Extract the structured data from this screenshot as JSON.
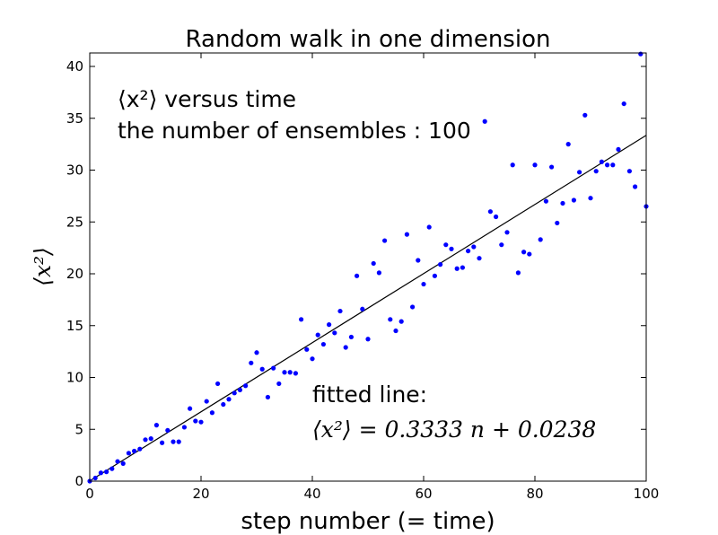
{
  "chart_data": {
    "type": "scatter",
    "title": "Random walk in one dimension",
    "xlabel": "step number (= time)",
    "ylabel": "⟨x²⟩",
    "xlim": [
      0,
      100
    ],
    "ylim": [
      0,
      41.3
    ],
    "xticks": [
      0,
      20,
      40,
      60,
      80,
      100
    ],
    "yticks": [
      0,
      5,
      10,
      15,
      20,
      25,
      30,
      35,
      40
    ],
    "grid": false,
    "annotations": {
      "line1": "⟨x²⟩ versus time",
      "line2": "the number of ensembles : 100",
      "fit_label": "fitted line:",
      "fit_equation": "⟨x²⟩ = 0.3333 n + 0.0238"
    },
    "fit": {
      "slope": 0.3333,
      "intercept": 0.0238
    },
    "series": [
      {
        "marker_color": "#0000ff",
        "x": [
          0,
          1,
          2,
          3,
          4,
          5,
          6,
          7,
          8,
          9,
          10,
          11,
          12,
          13,
          14,
          15,
          16,
          17,
          18,
          19,
          20,
          21,
          22,
          23,
          24,
          25,
          26,
          27,
          28,
          29,
          30,
          31,
          32,
          33,
          34,
          35,
          36,
          37,
          38,
          39,
          40,
          41,
          42,
          43,
          44,
          45,
          46,
          47,
          48,
          49,
          50,
          51,
          52,
          53,
          54,
          55,
          56,
          57,
          58,
          59,
          60,
          61,
          62,
          63,
          64,
          65,
          66,
          67,
          68,
          69,
          70,
          71,
          72,
          73,
          74,
          75,
          76,
          77,
          78,
          79,
          80,
          81,
          82,
          83,
          84,
          85,
          86,
          87,
          88,
          89,
          90,
          91,
          92,
          93,
          94,
          95,
          96,
          97,
          98,
          99,
          100
        ],
        "y": [
          0,
          0.3,
          0.8,
          0.9,
          1.2,
          1.9,
          1.7,
          2.7,
          2.9,
          3.1,
          4.0,
          4.1,
          5.4,
          3.7,
          4.9,
          3.8,
          3.8,
          5.2,
          7.0,
          5.8,
          5.7,
          7.7,
          6.6,
          9.4,
          7.4,
          7.9,
          8.5,
          8.8,
          9.2,
          11.4,
          12.4,
          10.8,
          8.1,
          10.9,
          9.4,
          10.5,
          10.5,
          10.4,
          15.6,
          12.7,
          11.8,
          14.1,
          13.2,
          15.1,
          14.3,
          16.4,
          12.9,
          13.9,
          19.8,
          16.6,
          13.7,
          21.0,
          20.1,
          23.2,
          15.6,
          14.5,
          15.4,
          23.8,
          16.8,
          21.3,
          19.0,
          24.5,
          19.8,
          20.9,
          22.8,
          22.4,
          20.5,
          20.6,
          22.2,
          22.6,
          21.5,
          34.7,
          26.0,
          25.5,
          22.8,
          24.0,
          30.5,
          20.1,
          22.1,
          21.9,
          30.5,
          23.3,
          27.0,
          30.3,
          24.9,
          26.8,
          32.5,
          27.1,
          29.8,
          35.3,
          27.3,
          29.9,
          30.8,
          30.5,
          30.5,
          32.0,
          36.4,
          29.9,
          28.4,
          41.2,
          26.5
        ]
      }
    ]
  }
}
